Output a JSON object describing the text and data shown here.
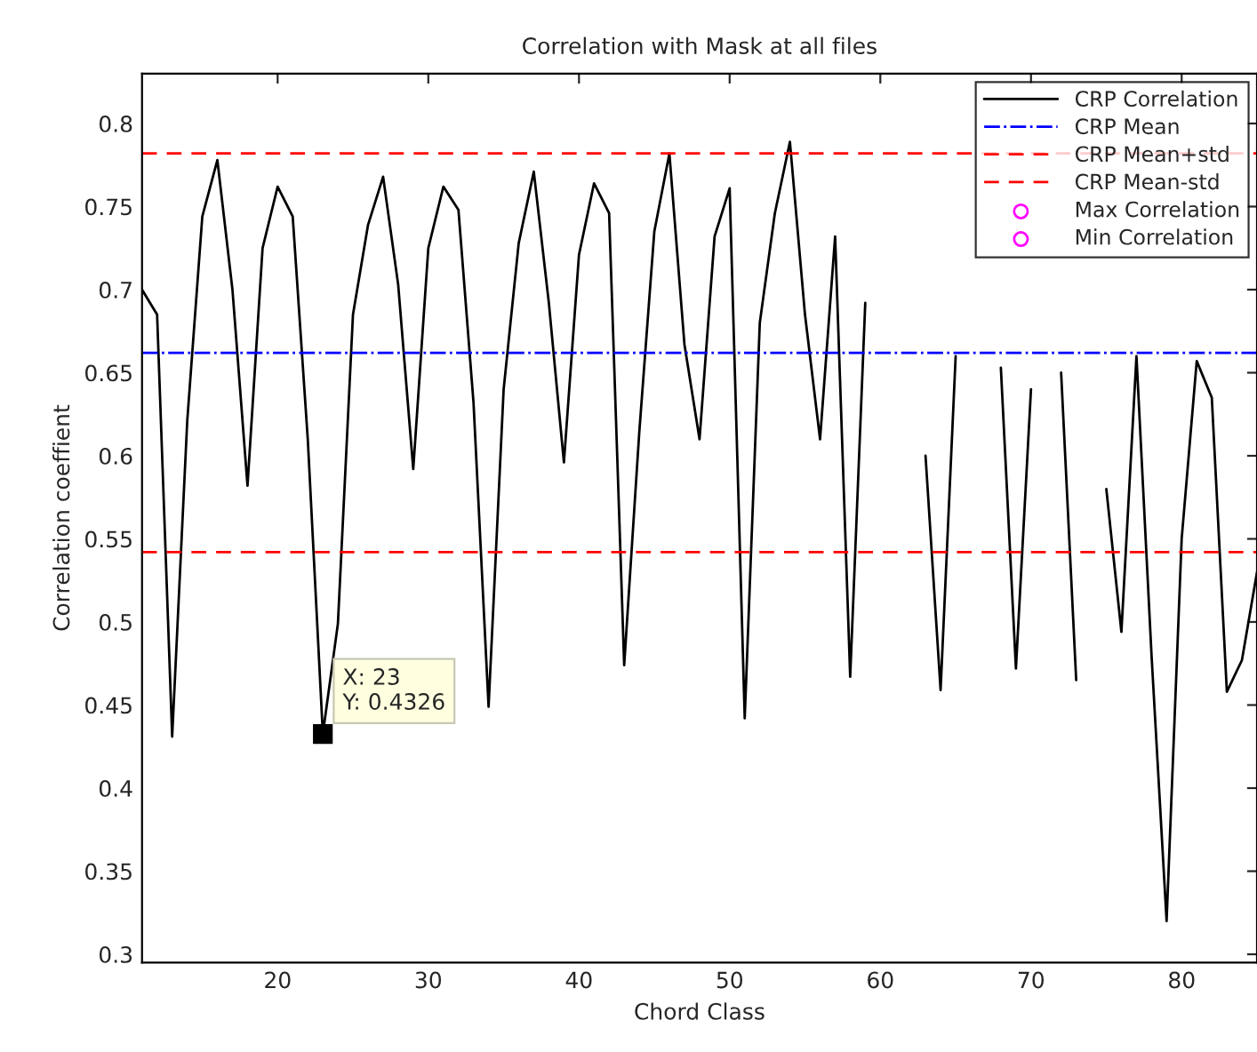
{
  "chart_data": {
    "type": "line",
    "title": "Correlation with Mask at all files",
    "xlabel": "Chord Class",
    "ylabel": "Correlation coeffient",
    "x": [
      11,
      12,
      13,
      14,
      15,
      16,
      17,
      18,
      19,
      20,
      21,
      22,
      23,
      24,
      25,
      26,
      27,
      28,
      29,
      30,
      31,
      32,
      33,
      34,
      35,
      36,
      37,
      38,
      39,
      40,
      41,
      42,
      43,
      44,
      45,
      46,
      47,
      48,
      49,
      50,
      51,
      52,
      53,
      54,
      55,
      56,
      57,
      58,
      59,
      60,
      61,
      62,
      63,
      64,
      65,
      66,
      67,
      68,
      69,
      70,
      71,
      72,
      73,
      74,
      75,
      76,
      77,
      78,
      79,
      80,
      81,
      82,
      83,
      84,
      85
    ],
    "series": [
      {
        "name": "CRP Correlation",
        "color": "#000000",
        "line_style": "solid",
        "marker": "none",
        "values": [
          0.7,
          0.685,
          0.431,
          0.621,
          0.744,
          0.778,
          0.7,
          0.582,
          0.725,
          0.762,
          0.744,
          0.61,
          0.4326,
          0.499,
          0.685,
          0.739,
          0.768,
          0.703,
          0.592,
          0.725,
          0.762,
          0.748,
          0.632,
          0.449,
          0.64,
          0.728,
          0.771,
          0.692,
          0.596,
          0.721,
          0.764,
          0.746,
          0.474,
          0.614,
          0.735,
          0.782,
          0.667,
          0.61,
          0.732,
          0.761,
          0.442,
          0.68,
          0.746,
          0.789,
          0.685,
          0.61,
          0.732,
          0.467,
          0.692,
          null,
          null,
          null,
          0.6,
          0.459,
          0.66,
          null,
          null,
          0.653,
          0.472,
          0.64,
          null,
          0.65,
          0.465,
          null,
          0.58,
          0.494,
          0.66,
          0.48,
          0.32,
          0.55,
          0.657,
          0.635,
          0.458,
          0.477,
          0.53
        ]
      },
      {
        "name": "Max Correlation",
        "color": "#ff00ff",
        "type": "scatter",
        "marker": "circle",
        "values": [
          null,
          null,
          null,
          null,
          null,
          null,
          null,
          null,
          null,
          null,
          null,
          null,
          null,
          null,
          null,
          null,
          null,
          null,
          null,
          null,
          null,
          null,
          null,
          null,
          null,
          null,
          null,
          null,
          null,
          null,
          null,
          null,
          null,
          null,
          null,
          null,
          null,
          null,
          null,
          null,
          null,
          null,
          null,
          null,
          null,
          null,
          null,
          null,
          null,
          null,
          null,
          null,
          null,
          null,
          null,
          null,
          null,
          null,
          null,
          null,
          null,
          null,
          null,
          null,
          null,
          null,
          null,
          null,
          null,
          null,
          null,
          null,
          null,
          null,
          null
        ]
      },
      {
        "name": "Min Correlation",
        "color": "#ff00ff",
        "type": "scatter",
        "marker": "circle",
        "values": [
          null,
          null,
          null,
          null,
          null,
          null,
          null,
          null,
          null,
          null,
          null,
          null,
          null,
          null,
          null,
          null,
          null,
          null,
          null,
          null,
          null,
          null,
          null,
          null,
          null,
          null,
          null,
          null,
          null,
          null,
          null,
          null,
          null,
          null,
          null,
          null,
          null,
          null,
          null,
          null,
          null,
          null,
          null,
          null,
          null,
          null,
          null,
          null,
          null,
          null,
          null,
          null,
          null,
          null,
          null,
          null,
          null,
          null,
          null,
          null,
          null,
          null,
          null,
          null,
          null,
          null,
          null,
          null,
          null,
          null,
          null,
          null,
          null,
          null,
          null
        ]
      }
    ],
    "ref_lines": [
      {
        "axis": "y",
        "value": 0.662,
        "label": "CRP Mean",
        "color": "#0000ff",
        "line_style": "dashdot"
      },
      {
        "axis": "y",
        "value": 0.782,
        "label": "CRP Mean+std",
        "color": "#ff0000",
        "line_style": "dashed"
      },
      {
        "axis": "y",
        "value": 0.542,
        "label": "CRP Mean-std",
        "color": "#ff0000",
        "line_style": "dashed"
      }
    ],
    "annotations": [
      {
        "text": "X: 23\nY: 0.4326",
        "x": 23,
        "y": 0.4326
      }
    ],
    "xlim": [
      11,
      85
    ],
    "ylim": [
      0.295,
      0.83
    ],
    "xticks": [
      20,
      30,
      40,
      50,
      60,
      70,
      80
    ],
    "yticks": [
      0.3,
      0.35,
      0.4,
      0.45,
      0.5,
      0.55,
      0.6,
      0.65,
      0.7,
      0.75,
      0.8
    ],
    "grid": false,
    "legend": "top right"
  }
}
